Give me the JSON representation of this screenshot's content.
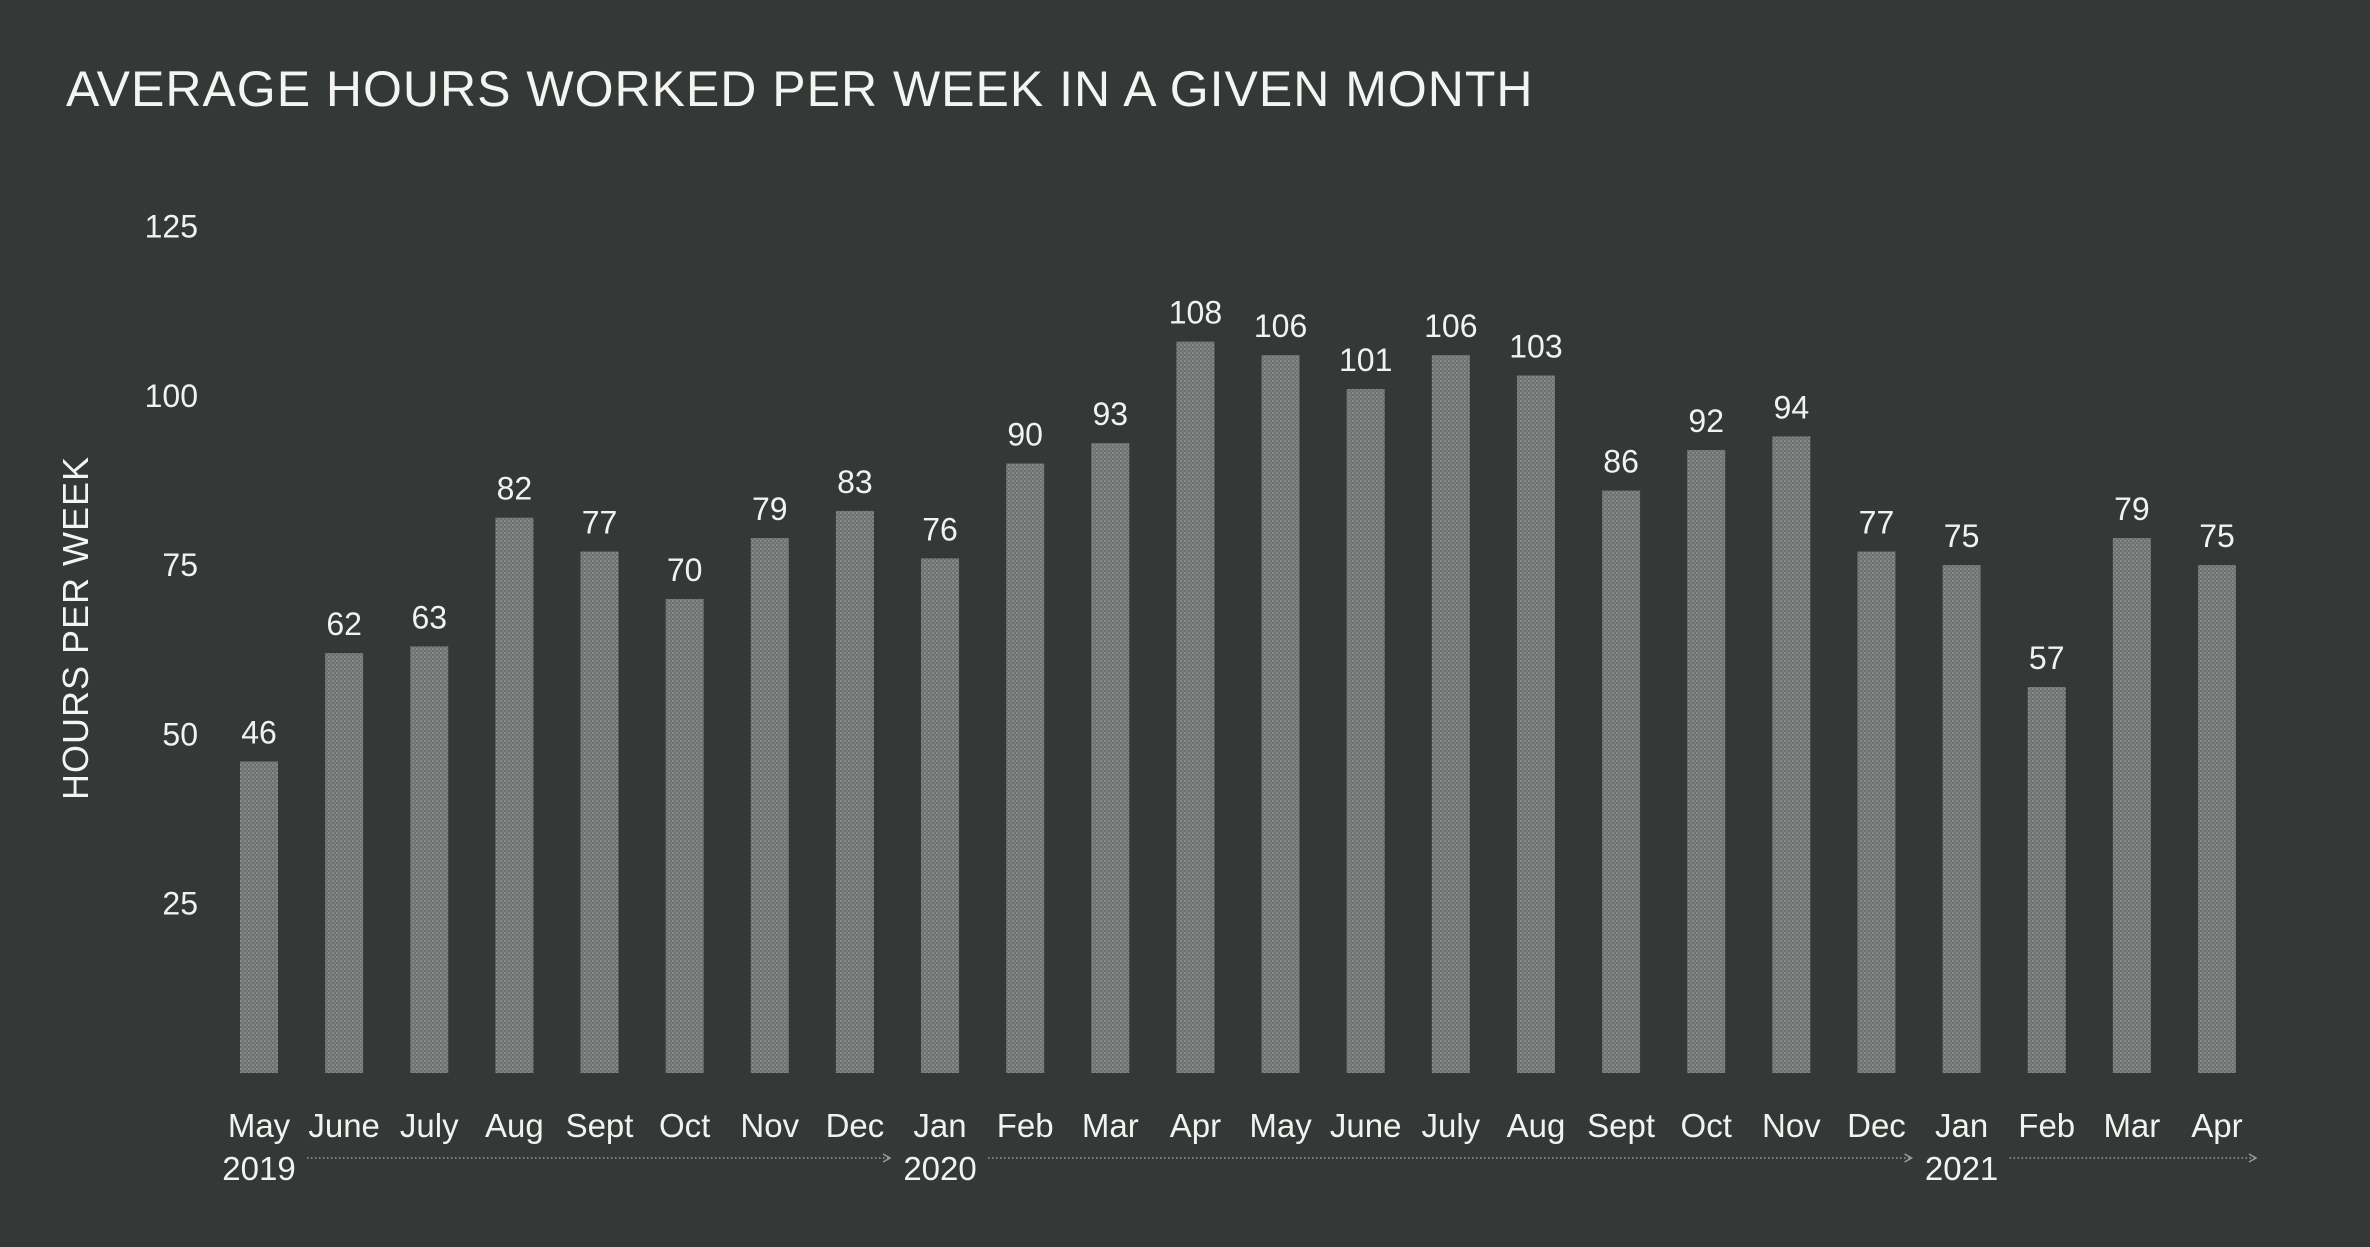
{
  "chart_data": {
    "type": "bar",
    "title": "AVERAGE HOURS WORKED PER WEEK IN A GIVEN MONTH",
    "xlabel": "",
    "ylabel": "HOURS PER WEEK",
    "ylim": [
      0,
      125
    ],
    "yticks": [
      "25",
      "50",
      "75",
      "100",
      "125"
    ],
    "grid": false,
    "colors": {
      "background": "#343837",
      "bar": "#777b79",
      "text": "#f2f2ef",
      "rule": "#9a9c9a"
    },
    "categories": [
      "May",
      "June",
      "July",
      "Aug",
      "Sept",
      "Oct",
      "Nov",
      "Dec",
      "Jan",
      "Feb",
      "Mar",
      "Apr",
      "May",
      "June",
      "July",
      "Aug",
      "Sept",
      "Oct",
      "Nov",
      "Dec",
      "Jan",
      "Feb",
      "Mar",
      "Apr"
    ],
    "values": [
      46,
      62,
      63,
      82,
      77,
      70,
      79,
      83,
      76,
      90,
      93,
      108,
      106,
      101,
      106,
      103,
      86,
      92,
      94,
      77,
      75,
      57,
      79,
      75
    ],
    "years": [
      {
        "label": "2019",
        "start_index": 0
      },
      {
        "label": "2020",
        "start_index": 8
      },
      {
        "label": "2021",
        "start_index": 20
      }
    ]
  }
}
